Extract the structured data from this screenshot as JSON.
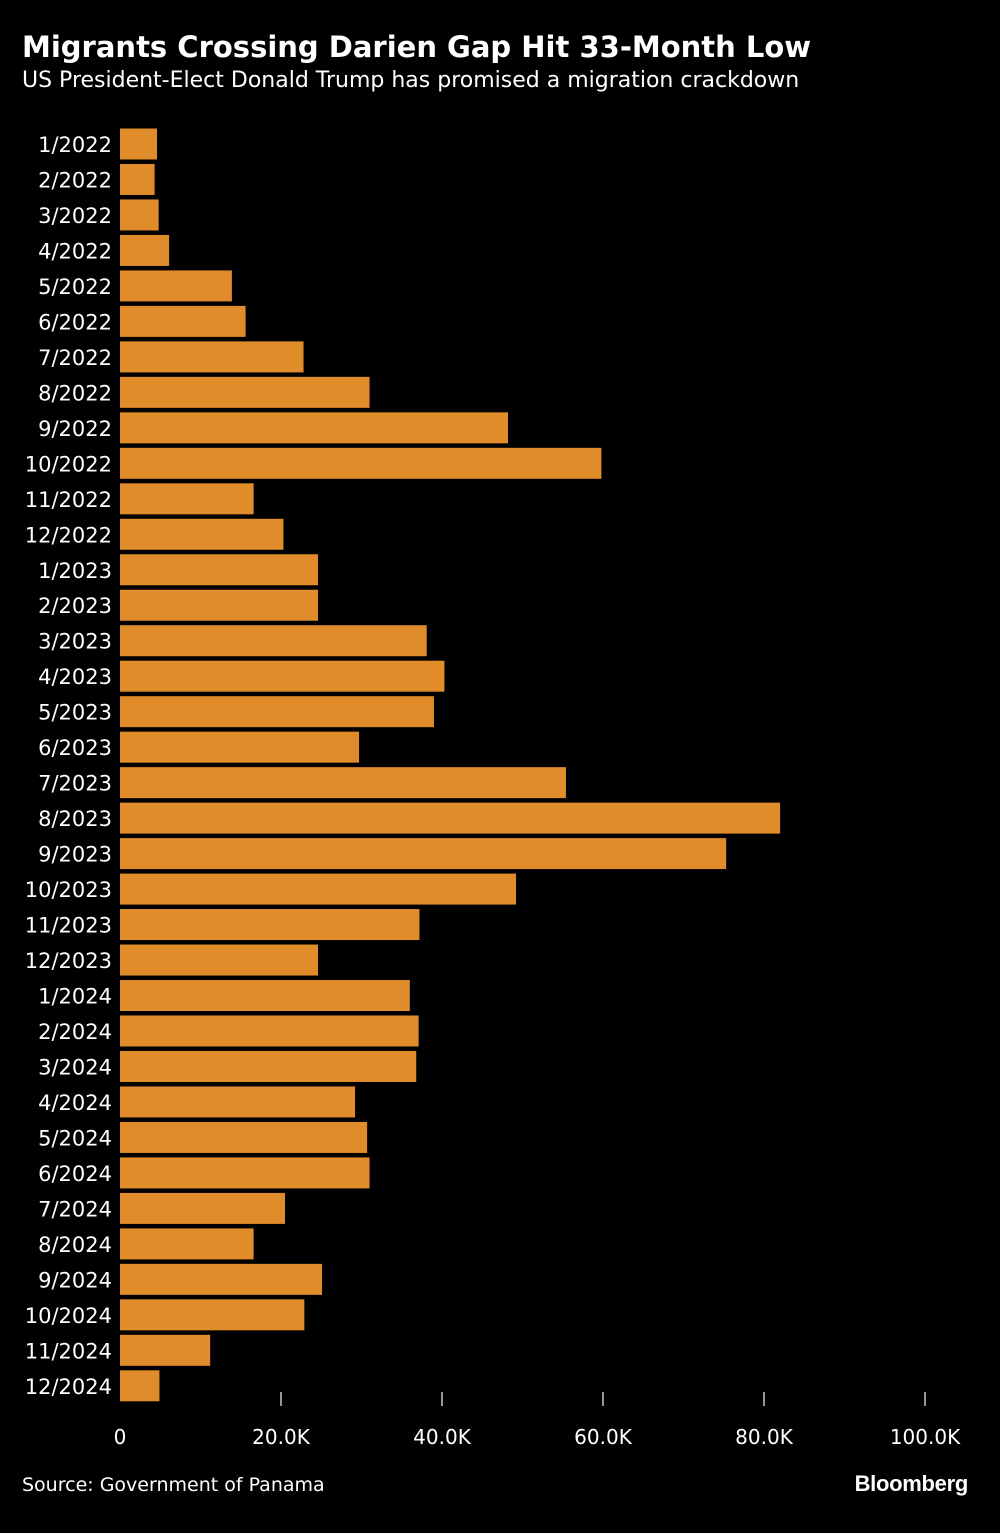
{
  "header": {
    "title": "Migrants Crossing Darien Gap Hit 33-Month Low",
    "subtitle": "US President-Elect Donald Trump has promised a migration crackdown"
  },
  "footer": {
    "source": "Source: Government of Panama",
    "brand": "Bloomberg"
  },
  "colors": {
    "background": "#000000",
    "bar": "#e08c2a",
    "text": "#ffffff",
    "tick": "#c8c8c8"
  },
  "chart_data": {
    "type": "bar",
    "orientation": "horizontal",
    "title": "Migrants Crossing Darien Gap Hit 33-Month Low",
    "subtitle": "US President-Elect Donald Trump has promised a migration crackdown",
    "xlabel": "",
    "ylabel": "",
    "xlim": [
      0,
      100000
    ],
    "x_ticks": [
      0,
      20000,
      40000,
      60000,
      80000,
      100000
    ],
    "x_tick_labels": [
      "0",
      "20.0K",
      "40.0K",
      "60.0K",
      "80.0K",
      "100.0K"
    ],
    "grid": false,
    "categories": [
      "1/2022",
      "2/2022",
      "3/2022",
      "4/2022",
      "5/2022",
      "6/2022",
      "7/2022",
      "8/2022",
      "9/2022",
      "10/2022",
      "11/2022",
      "12/2022",
      "1/2023",
      "2/2023",
      "3/2023",
      "4/2023",
      "5/2023",
      "6/2023",
      "7/2023",
      "8/2023",
      "9/2023",
      "10/2023",
      "11/2023",
      "12/2023",
      "1/2024",
      "2/2024",
      "3/2024",
      "4/2024",
      "5/2024",
      "6/2024",
      "7/2024",
      "8/2024",
      "9/2024",
      "10/2024",
      "11/2024",
      "12/2024"
    ],
    "values": [
      4600,
      4300,
      4800,
      6100,
      13900,
      15600,
      22800,
      31000,
      48200,
      59800,
      16600,
      20300,
      24600,
      24600,
      38100,
      40300,
      39000,
      29700,
      55400,
      82000,
      75300,
      49200,
      37200,
      24600,
      36000,
      37100,
      36800,
      29200,
      30700,
      31000,
      20500,
      16600,
      25100,
      22900,
      11200,
      4900
    ],
    "source": "Source: Government of Panama"
  }
}
